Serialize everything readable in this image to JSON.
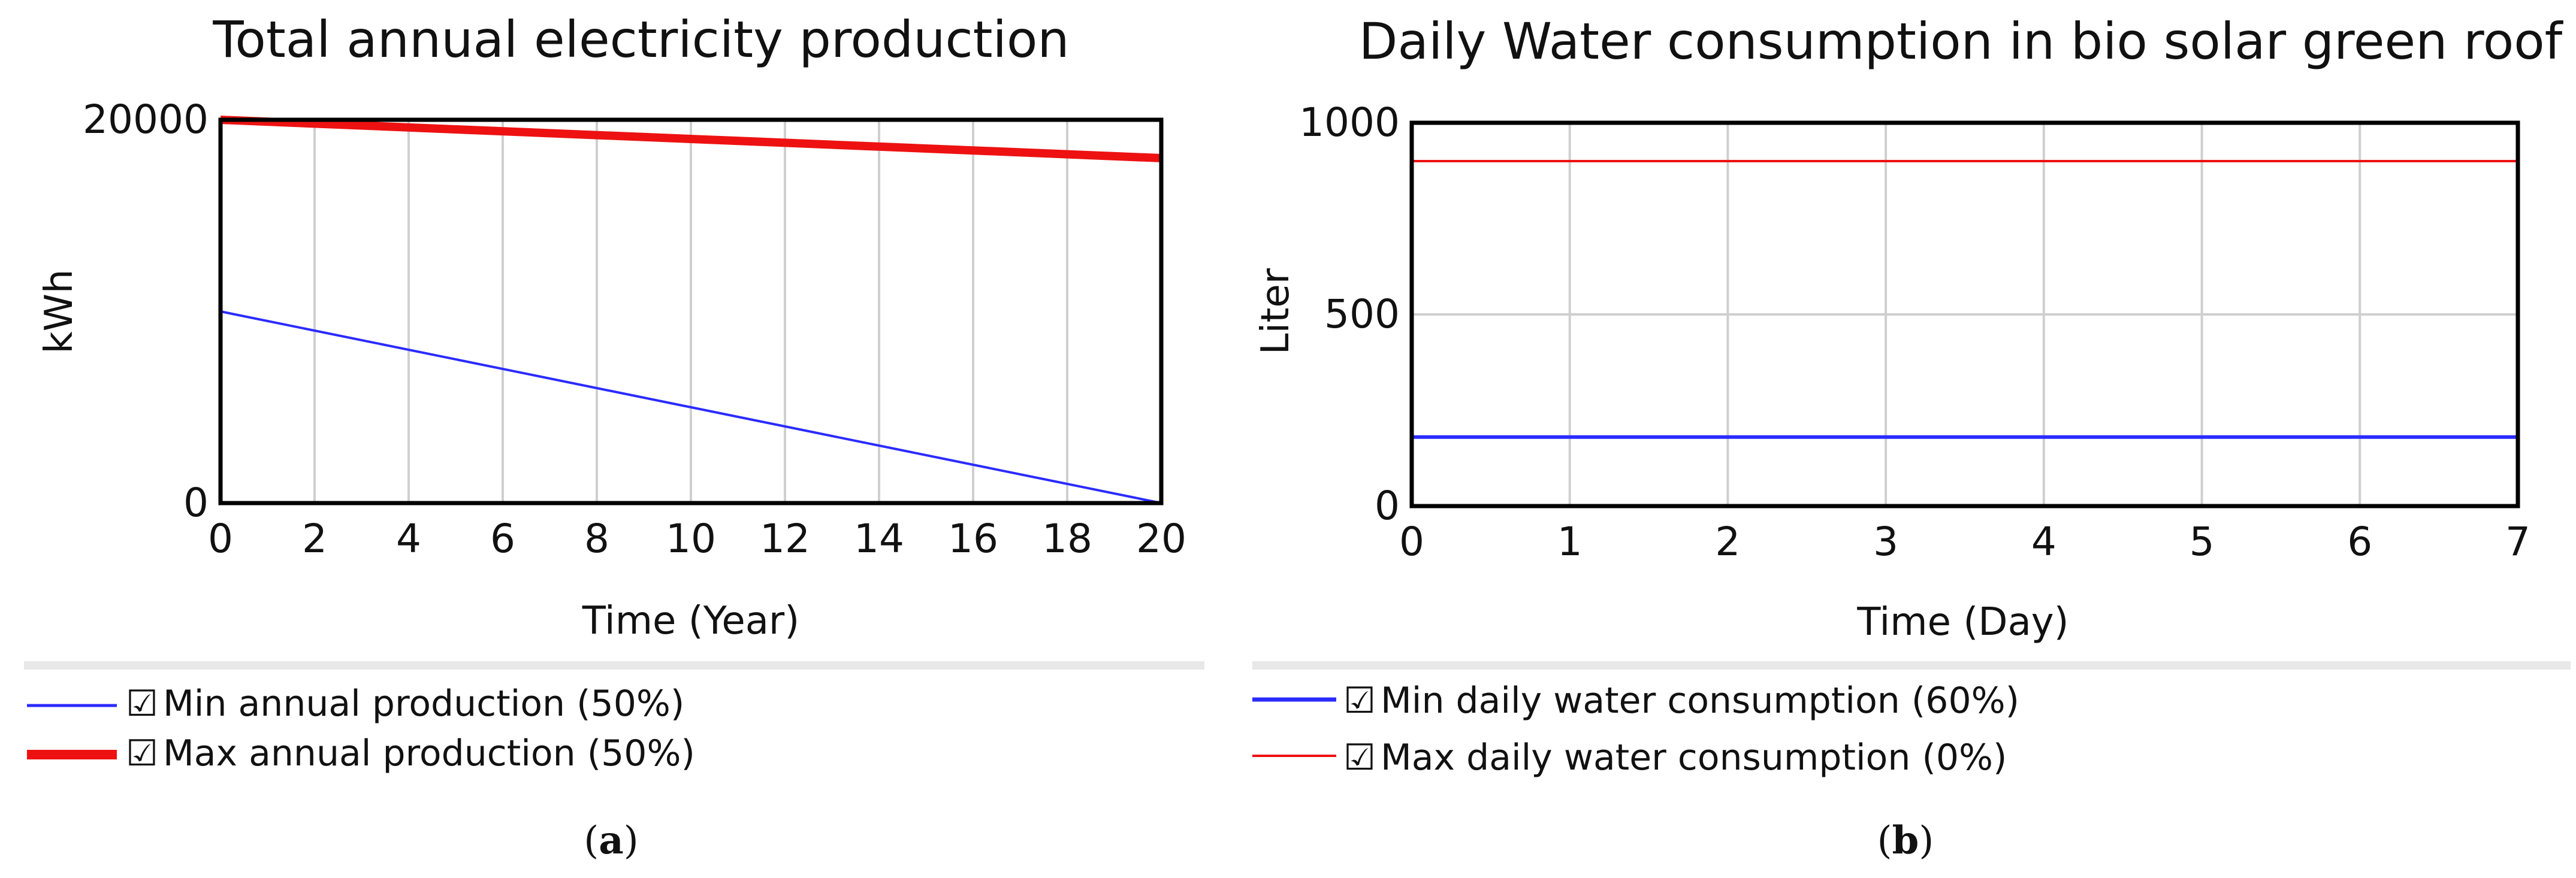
{
  "chart_data": [
    {
      "type": "line",
      "title": "Total annual electricity production",
      "xlabel": "Time (Year)",
      "ylabel": "kWh",
      "xlim": [
        0,
        20
      ],
      "ylim": [
        0,
        20000
      ],
      "x_ticks": [
        0,
        2,
        4,
        6,
        8,
        10,
        12,
        14,
        16,
        18,
        20
      ],
      "y_ticks": [
        0,
        20000
      ],
      "x_tick_labels": [
        "0",
        "2",
        "4",
        "6",
        "8",
        "10",
        "12",
        "14",
        "16",
        "18",
        "20"
      ],
      "y_tick_labels": [
        "0",
        "20000"
      ],
      "grid": true,
      "series": [
        {
          "name": "Min annual production (50%)",
          "color": "#2b2bff",
          "x": [
            0,
            20
          ],
          "y": [
            10000,
            0
          ],
          "weight": "thin"
        },
        {
          "name": "Max annual production (50%)",
          "color": "#ee1111",
          "x": [
            0,
            20
          ],
          "y": [
            20000,
            18000
          ],
          "weight": "thick"
        }
      ],
      "legend": {
        "checkbox": "☑",
        "items": [
          "Min annual production (50%)",
          "Max annual production (50%)"
        ]
      },
      "caption_open": "(",
      "caption_letter": "a",
      "caption_close": ")"
    },
    {
      "type": "line",
      "title": "Daily Water consumption in bio solar green roof",
      "xlabel": "Time (Day)",
      "ylabel": "Liter",
      "xlim": [
        0,
        7
      ],
      "ylim": [
        0,
        1000
      ],
      "x_ticks": [
        0,
        1,
        2,
        3,
        4,
        5,
        6,
        7
      ],
      "y_ticks": [
        0,
        500,
        1000
      ],
      "x_tick_labels": [
        "0",
        "1",
        "2",
        "3",
        "4",
        "5",
        "6",
        "7"
      ],
      "y_tick_labels": [
        "0",
        "500",
        "1000"
      ],
      "grid": true,
      "series": [
        {
          "name": "Min daily water consumption (60%)",
          "color": "#2b2bff",
          "x": [
            0,
            7
          ],
          "y": [
            180,
            180
          ],
          "weight": "medium"
        },
        {
          "name": "Max daily water consumption (0%)",
          "color": "#ee1111",
          "x": [
            0,
            7
          ],
          "y": [
            900,
            900
          ],
          "weight": "thin"
        }
      ],
      "legend": {
        "checkbox": "☑",
        "items": [
          "Min daily water consumption (60%)",
          "Max daily water consumption (0%)"
        ]
      },
      "caption_open": "(",
      "caption_letter": "b",
      "caption_close": ")"
    }
  ]
}
